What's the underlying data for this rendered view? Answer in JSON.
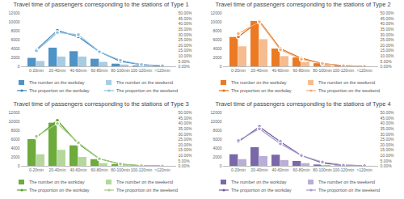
{
  "chart_data": [
    {
      "type": "bar",
      "title": "Travel time of passengers corresponding to the stations of Type 1",
      "categories": [
        "0-20min",
        "20-40min",
        "40-60min",
        "60-80min",
        "80-100min",
        "100-120min",
        ">120min"
      ],
      "ylim": [
        0,
        12000
      ],
      "yticks": [
        0,
        2000,
        4000,
        6000,
        8000,
        10000,
        12000
      ],
      "y2lim": [
        0,
        50
      ],
      "y2ticks": [
        {
          "value": 0,
          "label": "0.00%"
        },
        {
          "value": 5,
          "label": "5.00%"
        },
        {
          "value": 10,
          "label": "10.00%"
        },
        {
          "value": 15,
          "label": "15.00%"
        },
        {
          "value": 20,
          "label": "20.00%"
        },
        {
          "value": 25,
          "label": "25.00%"
        },
        {
          "value": 30,
          "label": "30.00%"
        },
        {
          "value": 35,
          "label": "35.00%"
        },
        {
          "value": 40,
          "label": "40.00%"
        },
        {
          "value": 45,
          "label": "45.00%"
        },
        {
          "value": 50,
          "label": "50.00%"
        }
      ],
      "legend": "bottom",
      "series": [
        {
          "name": "The number on the workday",
          "type": "bar",
          "color": "#4f93c7",
          "values": [
            1900,
            4200,
            3400,
            1700,
            600,
            200,
            100
          ]
        },
        {
          "name": "The number on the weekend",
          "type": "bar",
          "color": "#a9cce5",
          "values": [
            1200,
            2200,
            2200,
            1000,
            400,
            150,
            50
          ]
        },
        {
          "name": "The proportion on the workday",
          "type": "line",
          "axis": "y2",
          "color": "#3a86bd",
          "marker": "circle",
          "line_style": "solid",
          "values": [
            16,
            34,
            28,
            14,
            5,
            2,
            0.5
          ]
        },
        {
          "name": "The proportion on the weekend",
          "type": "line",
          "axis": "y2",
          "color": "#8dbfdf",
          "marker": "circle",
          "line_style": "solid",
          "values": [
            15,
            32,
            30,
            14,
            6,
            2,
            1
          ]
        }
      ]
    },
    {
      "type": "bar",
      "title": "Travel time of passengers corresponding to the stations of Type 2",
      "categories": [
        "0-20min",
        "20-40min",
        "40-60min",
        "60-80min",
        "80-100min",
        "100-120min",
        ">120min"
      ],
      "ylim": [
        0,
        12000
      ],
      "yticks": [
        0,
        2000,
        4000,
        6000,
        8000,
        10000,
        12000
      ],
      "y2lim": [
        0,
        50
      ],
      "y2ticks": [
        {
          "value": 0,
          "label": "0.00%"
        },
        {
          "value": 5,
          "label": "5.00%"
        },
        {
          "value": 10,
          "label": "10.00%"
        },
        {
          "value": 15,
          "label": "15.00%"
        },
        {
          "value": 20,
          "label": "20.00%"
        },
        {
          "value": 25,
          "label": "25.00%"
        },
        {
          "value": 30,
          "label": "30.00%"
        },
        {
          "value": 35,
          "label": "35.00%"
        },
        {
          "value": 40,
          "label": "40.00%"
        },
        {
          "value": 45,
          "label": "45.00%"
        },
        {
          "value": 50,
          "label": "50.00%"
        }
      ],
      "legend": "bottom",
      "series": [
        {
          "name": "The number on the workday",
          "type": "bar",
          "color": "#ec7a22",
          "values": [
            6600,
            10200,
            4000,
            2000,
            700,
            200,
            100
          ]
        },
        {
          "name": "The number on the weekend",
          "type": "bar",
          "color": "#f6bc8f",
          "values": [
            4500,
            6100,
            2300,
            1000,
            400,
            100,
            50
          ]
        },
        {
          "name": "The proportion on the workday",
          "type": "line",
          "axis": "y2",
          "color": "#e06f1a",
          "marker": "circle",
          "line_style": "solid",
          "values": [
            28,
            43,
            17,
            8,
            3,
            1,
            0.3
          ]
        },
        {
          "name": "The proportion on the weekend",
          "type": "line",
          "axis": "y2",
          "color": "#f3ac78",
          "marker": "circle",
          "line_style": "solid",
          "values": [
            31,
            42,
            16,
            7,
            3,
            1,
            0.3
          ]
        }
      ]
    },
    {
      "type": "bar",
      "title": "Travel time of passengers corresponding to the stations of Type 3",
      "categories": [
        "0-20min",
        "20-40min",
        "40-60min",
        "60-80min",
        "80-100min",
        "100-120min",
        ">120min"
      ],
      "ylim": [
        0,
        12000
      ],
      "yticks": [
        0,
        2000,
        4000,
        6000,
        8000,
        10000,
        12000
      ],
      "y2lim": [
        0,
        50
      ],
      "y2ticks": [
        {
          "value": 0,
          "label": "0.00%"
        },
        {
          "value": 5,
          "label": "5.00%"
        },
        {
          "value": 10,
          "label": "10.00%"
        },
        {
          "value": 15,
          "label": "15.00%"
        },
        {
          "value": 20,
          "label": "20.00%"
        },
        {
          "value": 25,
          "label": "25.00%"
        },
        {
          "value": 30,
          "label": "30.00%"
        },
        {
          "value": 35,
          "label": "35.00%"
        },
        {
          "value": 40,
          "label": "40.00%"
        },
        {
          "value": 45,
          "label": "45.00%"
        },
        {
          "value": 50,
          "label": "50.00%"
        }
      ],
      "legend": "bottom",
      "series": [
        {
          "name": "The number on the workday",
          "type": "bar",
          "color": "#6dab3c",
          "values": [
            6000,
            9700,
            4600,
            1500,
            400,
            100,
            50
          ]
        },
        {
          "name": "The number on the weekend",
          "type": "bar",
          "color": "#b5d79b",
          "values": [
            2600,
            3600,
            2000,
            600,
            200,
            50,
            20
          ]
        },
        {
          "name": "The proportion on the workday",
          "type": "line",
          "axis": "y2",
          "color": "#5f9e31",
          "marker": "circle",
          "line_style": "solid",
          "values": [
            27,
            43,
            21,
            7,
            2,
            0.5,
            0.2
          ]
        },
        {
          "name": "The proportion on the weekend",
          "type": "line",
          "axis": "y2",
          "color": "#a3cc85",
          "marker": "circle",
          "line_style": "solid",
          "values": [
            28,
            40,
            22,
            7,
            2,
            0.5,
            0.2
          ]
        }
      ]
    },
    {
      "type": "bar",
      "title": "Travel time of passengers corresponding to the stations of Type 4",
      "categories": [
        "0-20min",
        "20-40min",
        "40-60min",
        "60-80min",
        "80-100min",
        "100-120min",
        ">120min"
      ],
      "ylim": [
        0,
        12000
      ],
      "yticks": [
        0,
        2000,
        4000,
        6000,
        8000,
        10000,
        12000
      ],
      "y2lim": [
        0,
        50
      ],
      "y2ticks": [
        {
          "value": 0,
          "label": "0.00%"
        },
        {
          "value": 5,
          "label": "5.00%"
        },
        {
          "value": 10,
          "label": "10.00%"
        },
        {
          "value": 15,
          "label": "15.00%"
        },
        {
          "value": 20,
          "label": "20.00%"
        },
        {
          "value": 25,
          "label": "25.00%"
        },
        {
          "value": 30,
          "label": "30.00%"
        },
        {
          "value": 35,
          "label": "35.00%"
        },
        {
          "value": 40,
          "label": "40.00%"
        },
        {
          "value": 45,
          "label": "45.00%"
        },
        {
          "value": 50,
          "label": "50.00%"
        }
      ],
      "legend": "bottom",
      "series": [
        {
          "name": "The number on the workday",
          "type": "bar",
          "color": "#7b68a9",
          "values": [
            2600,
            4200,
            2500,
            1100,
            300,
            100,
            50
          ]
        },
        {
          "name": "The number on the weekend",
          "type": "bar",
          "color": "#b9aed5",
          "values": [
            1500,
            2200,
            1300,
            600,
            200,
            50,
            20
          ]
        },
        {
          "name": "The proportion on the workday",
          "type": "line",
          "axis": "y2",
          "color": "#6e5ba0",
          "marker": "circle",
          "line_style": "solid",
          "values": [
            23,
            37,
            23,
            10,
            3,
            1,
            0.5
          ]
        },
        {
          "name": "The proportion on the weekend",
          "type": "line",
          "axis": "y2",
          "color": "#a99cc9",
          "marker": "circle",
          "line_style": "solid",
          "values": [
            24,
            35,
            21,
            10,
            4,
            1,
            0.5
          ]
        }
      ]
    }
  ]
}
